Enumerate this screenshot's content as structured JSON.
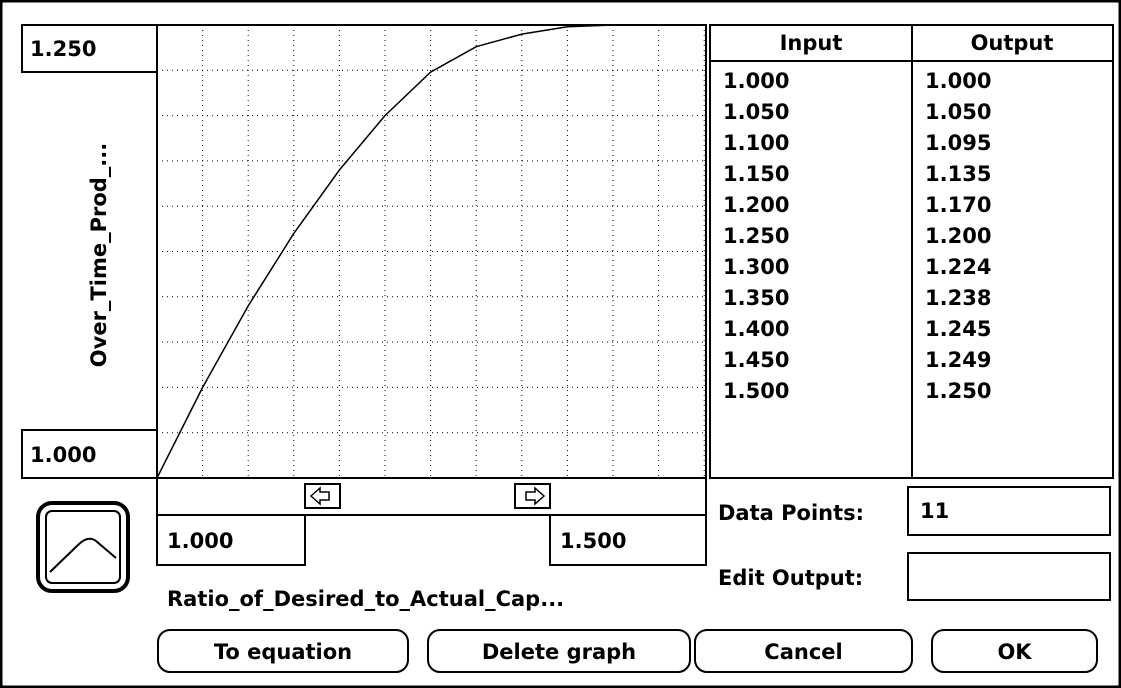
{
  "graph": {
    "y_label": "Over_Time_Prod_...",
    "x_label": "Ratio_of_Desired_to_Actual_Cap...",
    "yticks": [
      {
        "value": 1,
        "label": "1.000"
      },
      {
        "value": 1.25,
        "label": "1.250"
      }
    ],
    "xticks": [
      {
        "value": 1,
        "label": "1.000"
      },
      {
        "value": 1.5,
        "label": "1.500"
      }
    ],
    "xlim": [
      1,
      1.5
    ],
    "ylim": [
      1,
      1.25
    ],
    "x": [
      1,
      1.05,
      1.1,
      1.15,
      1.2,
      1.25,
      1.3,
      1.35,
      1.4,
      1.45,
      1.5
    ],
    "y": [
      1,
      1.05,
      1.095,
      1.135,
      1.17,
      1.2,
      1.224,
      1.238,
      1.245,
      1.249,
      1.25
    ]
  },
  "table": {
    "headers": [
      "Input",
      "Output"
    ],
    "rows": [
      [
        "1.000",
        "1.000"
      ],
      [
        "1.050",
        "1.050"
      ],
      [
        "1.100",
        "1.095"
      ],
      [
        "1.150",
        "1.135"
      ],
      [
        "1.200",
        "1.170"
      ],
      [
        "1.250",
        "1.200"
      ],
      [
        "1.300",
        "1.224"
      ],
      [
        "1.350",
        "1.238"
      ],
      [
        "1.400",
        "1.245"
      ],
      [
        "1.450",
        "1.249"
      ],
      [
        "1.500",
        "1.250"
      ]
    ]
  },
  "data_points": {
    "label": "Data Points:",
    "value": "11"
  },
  "edit_output": {
    "label": "Edit Output:"
  },
  "buttons": [
    "To equation",
    "Delete graph",
    "Cancel",
    "OK"
  ]
}
